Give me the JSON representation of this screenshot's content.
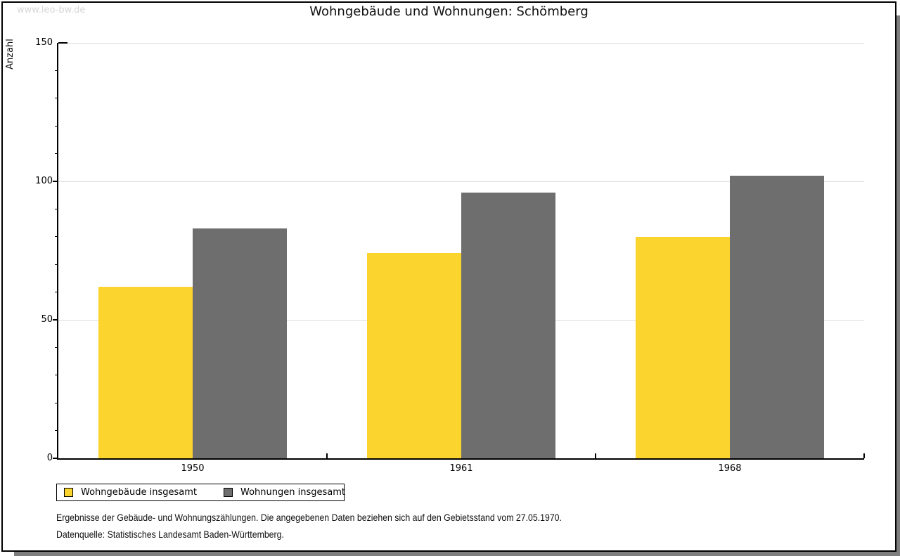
{
  "watermark": "www.leo-bw.de",
  "chart_data": {
    "type": "bar",
    "title": "Wohngebäude und Wohnungen: Schömberg",
    "ylabel": "Anzahl",
    "xlabel": "",
    "categories": [
      "1950",
      "1961",
      "1968"
    ],
    "series": [
      {
        "name": "Wohngebäude insgesamt",
        "color": "#FCD42E",
        "values": [
          62,
          74,
          80
        ]
      },
      {
        "name": "Wohnungen insgesamt",
        "color": "#6E6E6E",
        "values": [
          83,
          96,
          102
        ]
      }
    ],
    "ylim": [
      0,
      150
    ],
    "y_major_ticks": [
      0,
      50,
      100,
      150
    ],
    "y_minor_step": 10,
    "grid": true,
    "legend_position": "bottom-left"
  },
  "footnotes": [
    "Ergebnisse der Gebäude- und Wohnungszählungen. Die angegebenen Daten beziehen sich auf den Gebietsstand vom 27.05.1970.",
    "Datenquelle: Statistisches Landesamt Baden-Württemberg."
  ],
  "colors": {
    "bar_yellow": "#FCD42E",
    "bar_gray": "#6E6E6E",
    "grid": "#DCDCDC",
    "axis": "#000000",
    "title_text": "#111111",
    "watermark": "#D7D7D7",
    "shadow": "#7E7E7E",
    "border": "#000000"
  }
}
